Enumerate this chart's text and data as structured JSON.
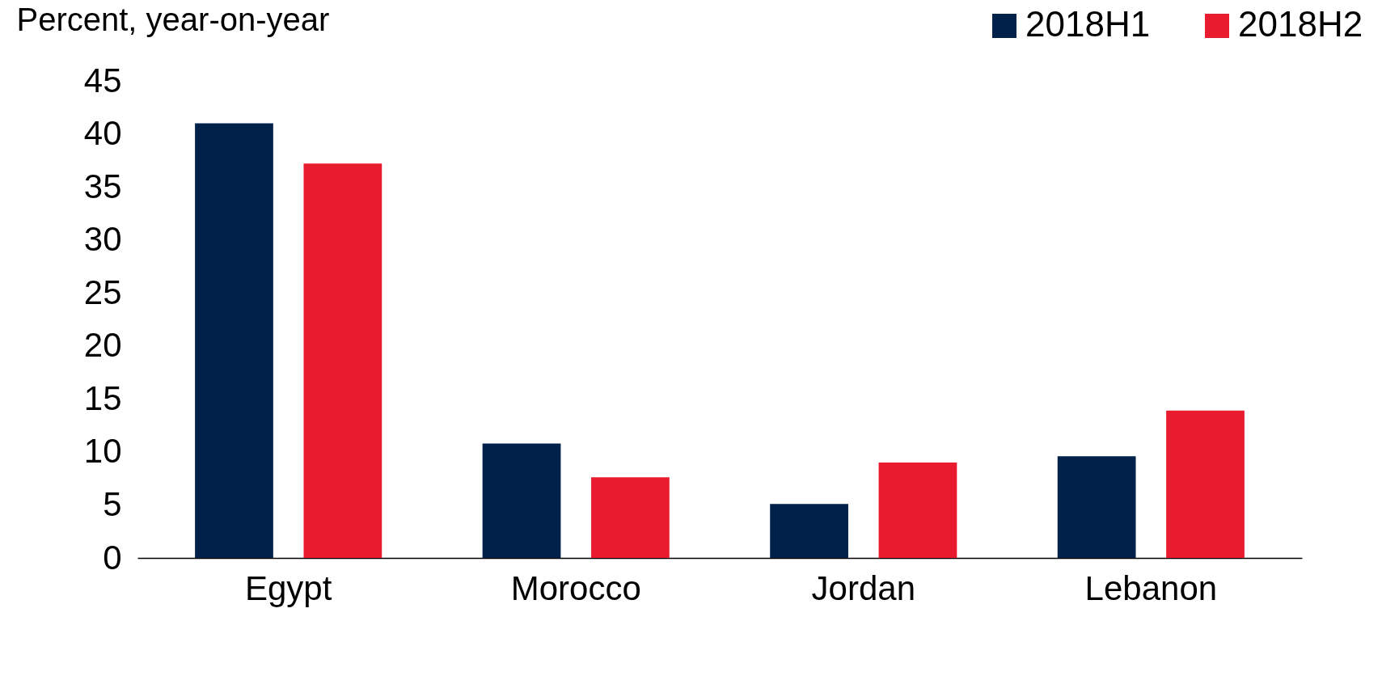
{
  "chart_data": {
    "type": "bar",
    "ylabel": "Percent, year-on-year",
    "categories": [
      "Egypt",
      "Morocco",
      "Jordan",
      "Lebanon"
    ],
    "series": [
      {
        "name": "2018H1",
        "color": "#00214a",
        "values": [
          41,
          10.8,
          5.1,
          9.6
        ]
      },
      {
        "name": "2018H2",
        "color": "#e81c2e",
        "values": [
          37.2,
          7.6,
          9,
          13.9
        ]
      }
    ],
    "ylim": [
      0,
      45
    ],
    "yticks": [
      0,
      5,
      10,
      15,
      20,
      25,
      30,
      35,
      40,
      45
    ],
    "grid": false,
    "legend": "top right"
  }
}
